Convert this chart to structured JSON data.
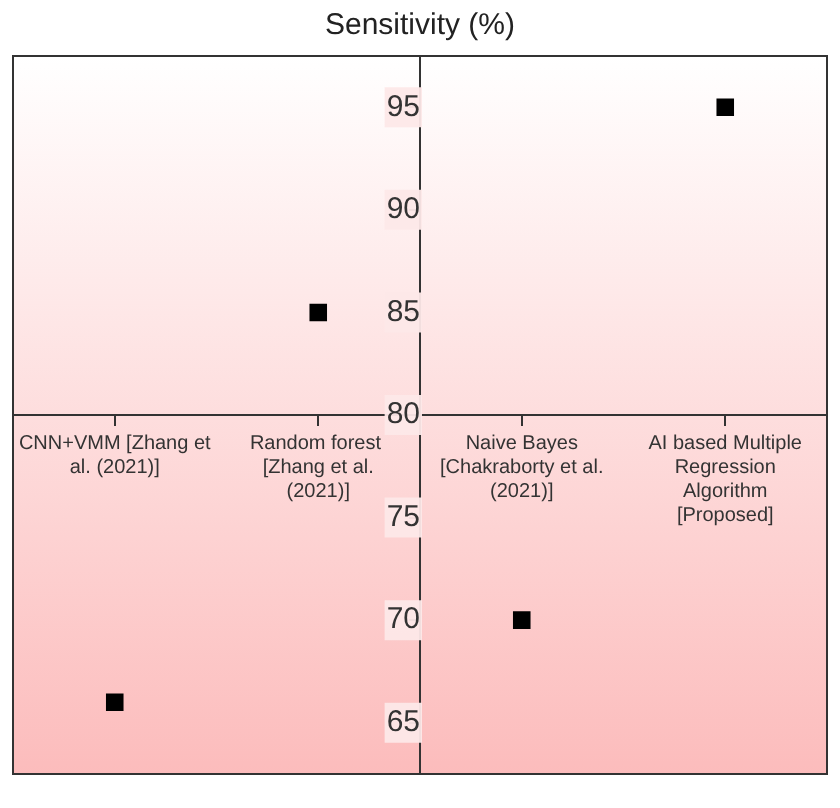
{
  "chart_data": {
    "type": "scatter",
    "title": "Sensitivity (%)",
    "categories": [
      "CNN+VMM [Zhang et al. (2021)]",
      "Random forest  [Zhang et al. (2021)]",
      "Naive Bayes [Chakraborty et al. (2021)]",
      "AI based Multiple Regression Algorithm [Proposed]"
    ],
    "values": [
      66,
      85,
      70,
      95
    ],
    "color": "#000000",
    "marker": "square",
    "ylim": [
      62.5,
      97.5
    ],
    "yticks": [
      65,
      70,
      75,
      80,
      85,
      90,
      95
    ],
    "grid": false,
    "legend": false
  }
}
